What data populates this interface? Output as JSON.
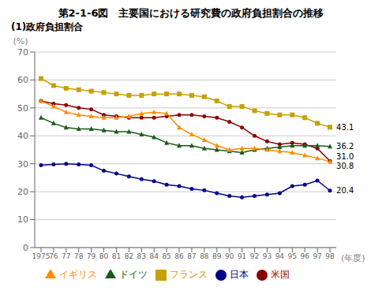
{
  "chart_data": {
    "type": "line",
    "title": "第2-1-6図　主要国における研究費の政府負担割合の推移",
    "subtitle": "(1)政府負担割合",
    "ylabel": "(%)",
    "xlabel": "(年度)",
    "x": [
      1975,
      1976,
      1977,
      1978,
      1979,
      1980,
      1981,
      1982,
      1983,
      1984,
      1985,
      1986,
      1987,
      1988,
      1989,
      1990,
      1991,
      1992,
      1993,
      1994,
      1995,
      1996,
      1997,
      1998
    ],
    "series": [
      {
        "name": "日本",
        "color": "#00008B",
        "marker": "circle",
        "values": [
          29.5,
          29.8,
          30.0,
          29.8,
          29.5,
          27.5,
          26.5,
          25.5,
          24.5,
          23.8,
          22.5,
          22.0,
          21.0,
          20.5,
          19.5,
          18.5,
          18.0,
          18.5,
          19.0,
          19.5,
          22.0,
          22.5,
          24.0,
          20.4
        ]
      },
      {
        "name": "米国",
        "color": "#8B0000",
        "marker": "circle",
        "values": [
          52.5,
          51.5,
          51.0,
          50.0,
          49.5,
          47.5,
          47.0,
          46.5,
          46.5,
          46.5,
          47.0,
          47.5,
          47.5,
          47.0,
          46.5,
          45.0,
          43.0,
          40.0,
          38.0,
          37.0,
          37.5,
          37.0,
          35.5,
          31.0
        ]
      },
      {
        "name": "ドイツ",
        "color": "#1a5c1a",
        "marker": "triangle",
        "values": [
          46.5,
          44.5,
          43.0,
          42.5,
          42.5,
          42.0,
          41.5,
          41.5,
          40.5,
          39.5,
          37.5,
          36.5,
          36.5,
          35.5,
          35.0,
          34.5,
          34.0,
          35.0,
          35.5,
          36.0,
          36.5,
          36.5,
          36.5,
          36.2
        ]
      },
      {
        "name": "フランス",
        "color": "#C8A000",
        "marker": "square",
        "values": [
          60.5,
          58.0,
          57.0,
          56.5,
          56.0,
          55.5,
          55.0,
          54.5,
          54.5,
          55.0,
          55.0,
          55.0,
          54.5,
          54.0,
          52.5,
          50.5,
          50.5,
          49.0,
          48.0,
          47.5,
          47.5,
          46.5,
          44.5,
          43.1
        ]
      },
      {
        "name": "イギリス",
        "color": "#FF8C00",
        "marker": "triangle",
        "values": [
          52.5,
          50.5,
          48.5,
          47.5,
          47.0,
          46.5,
          46.5,
          47.0,
          48.0,
          48.5,
          48.0,
          43.0,
          40.5,
          38.5,
          36.5,
          35.0,
          35.5,
          35.5,
          35.0,
          34.5,
          34.0,
          33.0,
          32.0,
          30.8
        ]
      }
    ],
    "annotations": [
      {
        "text": "43.1",
        "x": 1998,
        "y": 43.1
      },
      {
        "text": "36.2",
        "x": 1998,
        "y": 36.2
      },
      {
        "text": "31.0",
        "x": 1998,
        "y": 31.0
      },
      {
        "text": "30.8",
        "x": 1998,
        "y": 30.8
      },
      {
        "text": "20.4",
        "x": 1998,
        "y": 20.4
      }
    ],
    "xlim": [
      1974.5,
      1998.5
    ],
    "xticks": [
      1975,
      {
        "value": 1976,
        "label": "76"
      },
      {
        "value": 1977,
        "label": "77"
      },
      {
        "value": 1978,
        "label": "78"
      },
      {
        "value": 1979,
        "label": "79"
      },
      {
        "value": 1980,
        "label": "80"
      },
      {
        "value": 1981,
        "label": "81"
      },
      {
        "value": 1982,
        "label": "82"
      },
      {
        "value": 1983,
        "label": "83"
      },
      {
        "value": 1984,
        "label": "84"
      },
      {
        "value": 1985,
        "label": "85"
      },
      {
        "value": 1986,
        "label": "86"
      },
      {
        "value": 1987,
        "label": "87"
      },
      {
        "value": 1988,
        "label": "88"
      },
      {
        "value": 1989,
        "label": "89"
      },
      {
        "value": 1990,
        "label": "90"
      },
      {
        "value": 1991,
        "label": "91"
      },
      {
        "value": 1992,
        "label": "92"
      },
      {
        "value": 1993,
        "label": "93"
      },
      {
        "value": 1994,
        "label": "94"
      },
      {
        "value": 1995,
        "label": "95"
      },
      {
        "value": 1996,
        "label": "96"
      },
      {
        "value": 1997,
        "label": "97"
      },
      {
        "value": 1998,
        "label": "98"
      }
    ],
    "ylim": [
      0,
      70
    ],
    "yticks": [
      0,
      10,
      20,
      30,
      40,
      50,
      60,
      70
    ],
    "grid": true,
    "legend": "bottom"
  }
}
